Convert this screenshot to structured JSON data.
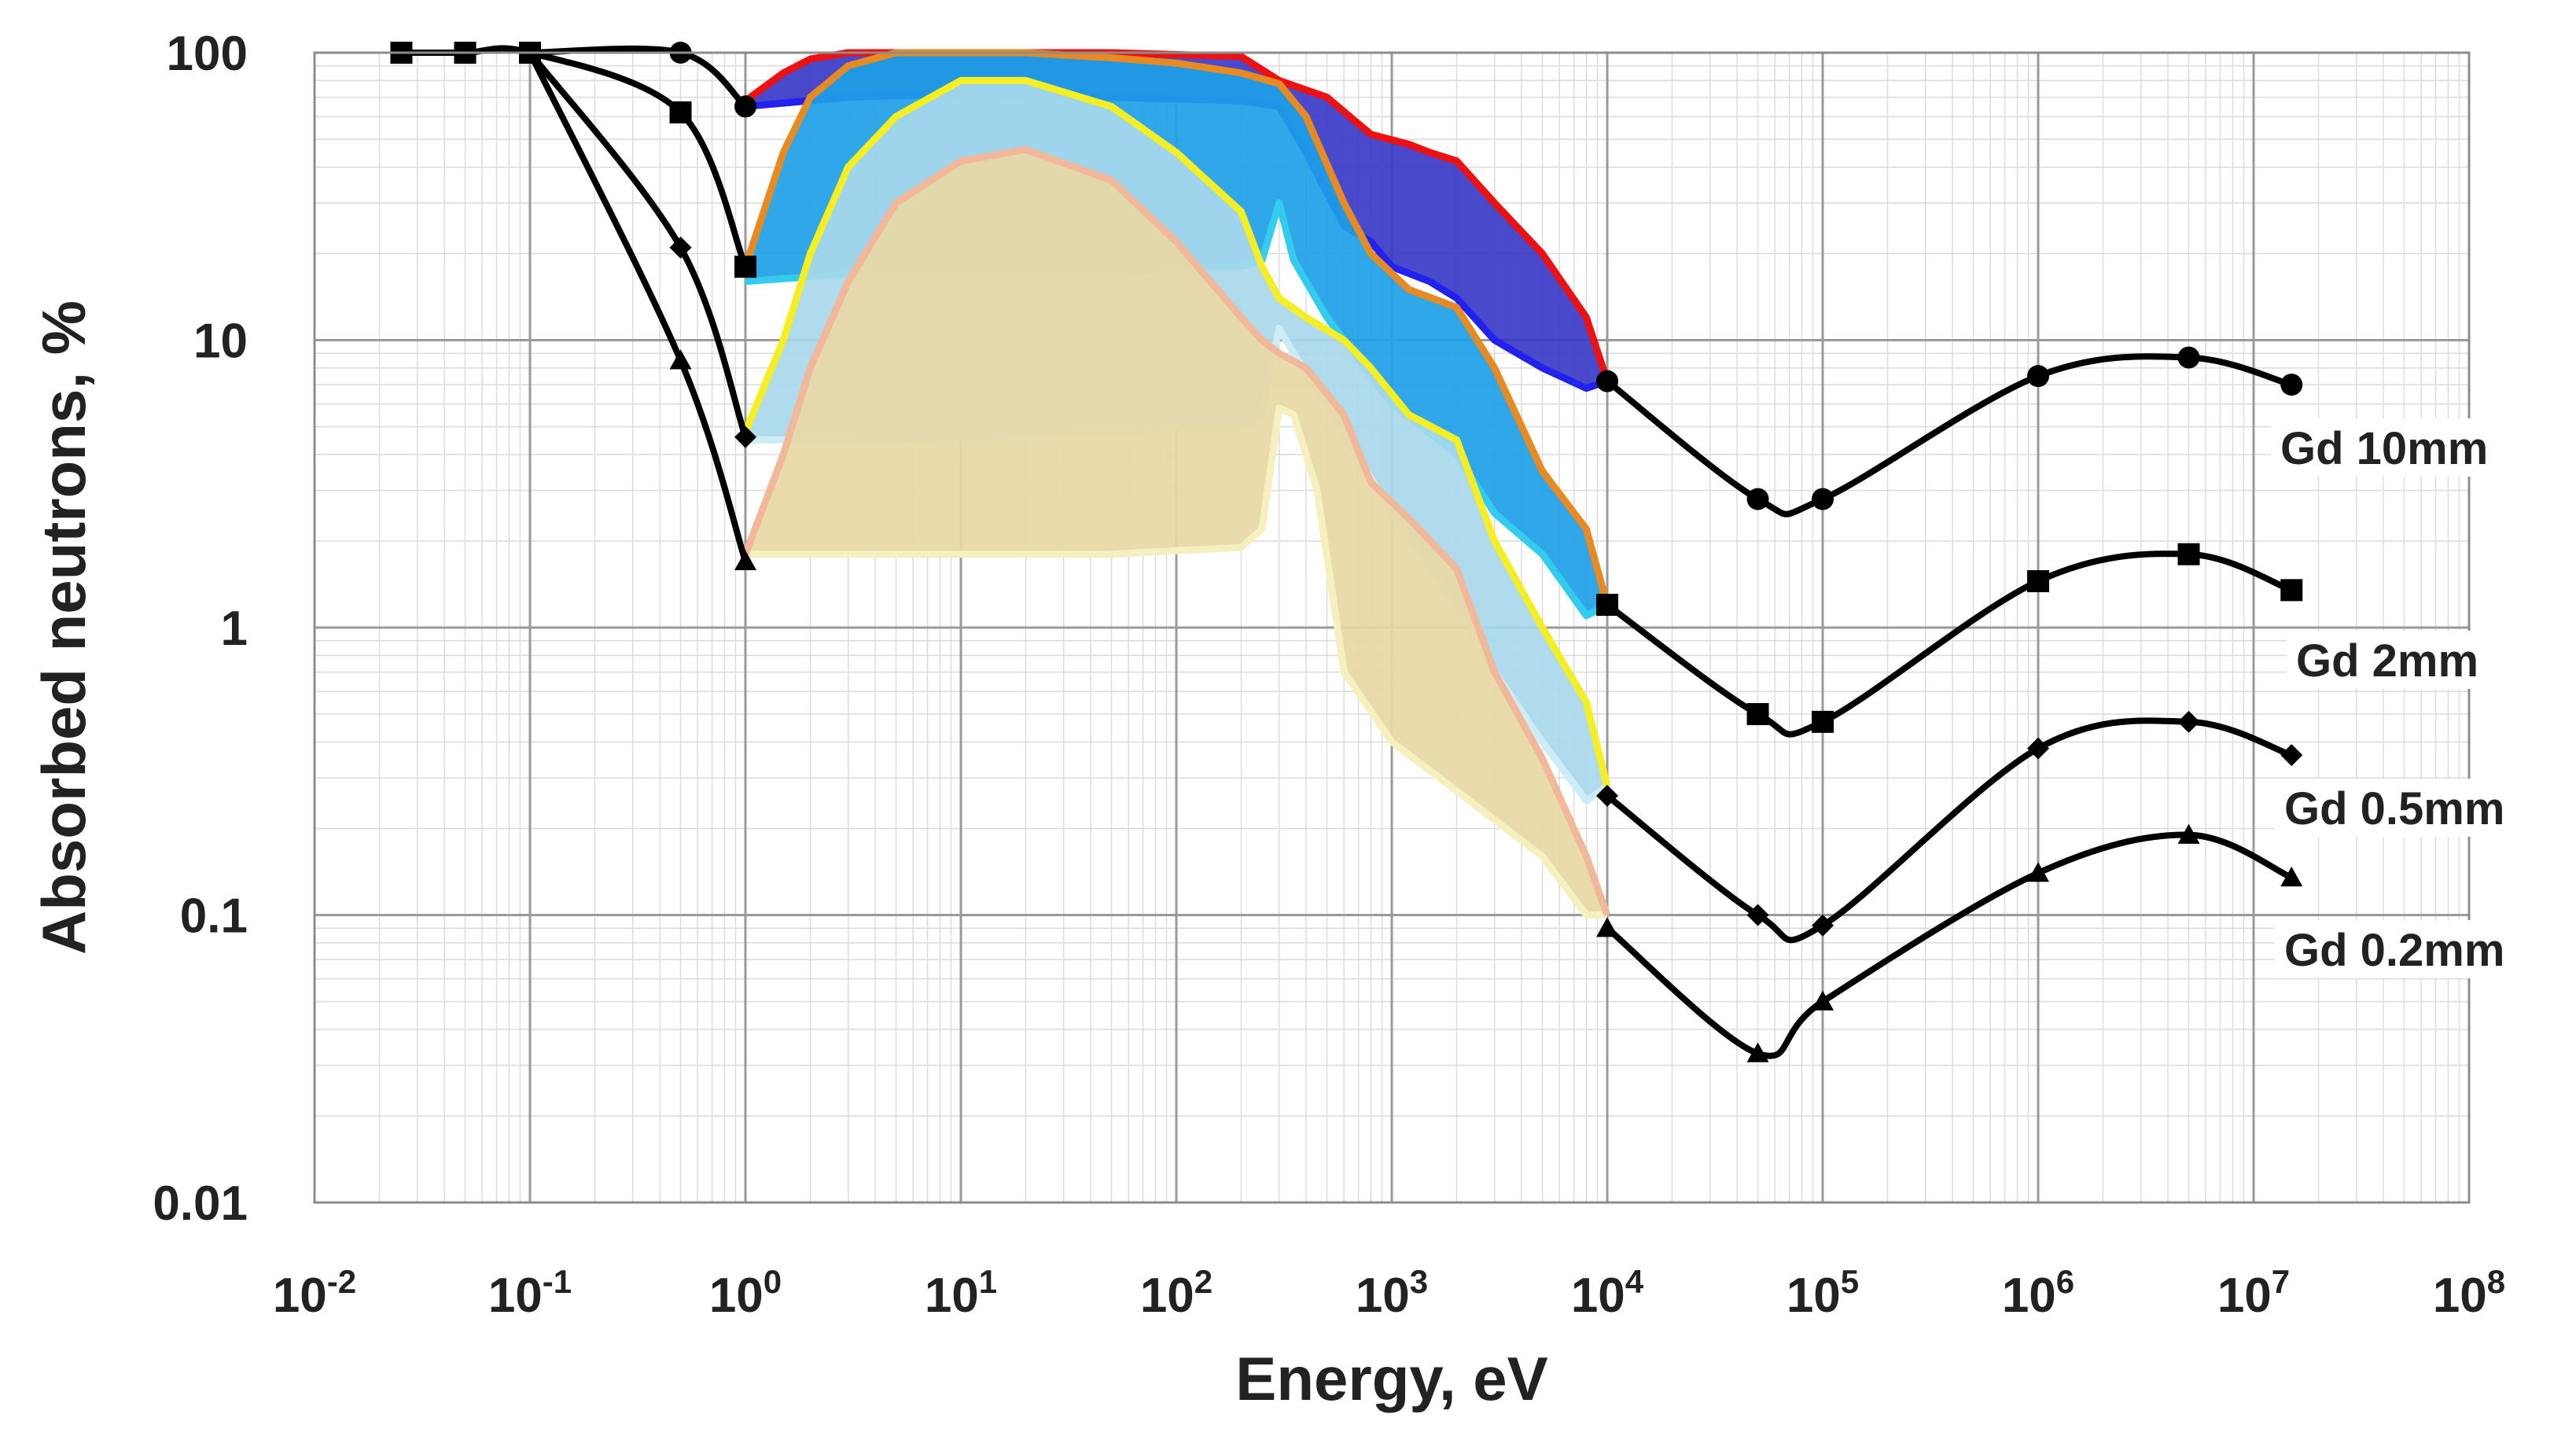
{
  "chart_data": {
    "type": "line",
    "xlabel": "Energy, eV",
    "ylabel": "Absorbed neutrons, %",
    "xscale": "log",
    "yscale": "log",
    "xlim": [
      0.01,
      100000000
    ],
    "ylim": [
      0.01,
      100
    ],
    "grid": true,
    "x_ticks": [
      {
        "base": "10",
        "exp": "-2"
      },
      {
        "base": "10",
        "exp": "-1"
      },
      {
        "base": "10",
        "exp": "0"
      },
      {
        "base": "10",
        "exp": "1"
      },
      {
        "base": "10",
        "exp": "2"
      },
      {
        "base": "10",
        "exp": "3"
      },
      {
        "base": "10",
        "exp": "4"
      },
      {
        "base": "10",
        "exp": "5"
      },
      {
        "base": "10",
        "exp": "6"
      },
      {
        "base": "10",
        "exp": "7"
      },
      {
        "base": "10",
        "exp": "8"
      }
    ],
    "y_ticks": [
      "0.01",
      "0.1",
      "1",
      "10",
      "100"
    ],
    "series": [
      {
        "name": "Gd 10mm",
        "marker": "circle",
        "line_color": "#000000",
        "x": [
          0.1,
          0.5,
          1,
          10000,
          50000,
          100000,
          1000000,
          5000000,
          15000000
        ],
        "y": [
          100,
          100,
          65,
          7.2,
          2.8,
          2.8,
          7.5,
          8.7,
          7.0
        ]
      },
      {
        "name": "Gd 2mm",
        "marker": "square",
        "line_color": "#000000",
        "x": [
          0.0253,
          0.05,
          0.1,
          0.5,
          1,
          10000,
          50000,
          100000,
          1000000,
          5000000,
          15000000
        ],
        "y": [
          100,
          100,
          100,
          62,
          18,
          1.2,
          0.5,
          0.47,
          1.45,
          1.8,
          1.35
        ]
      },
      {
        "name": "Gd 0.5mm",
        "marker": "diamond",
        "line_color": "#000000",
        "x": [
          0.1,
          0.5,
          1,
          10000,
          50000,
          100000,
          1000000,
          5000000,
          15000000
        ],
        "y": [
          100,
          21,
          4.6,
          0.26,
          0.1,
          0.092,
          0.38,
          0.47,
          0.36
        ]
      },
      {
        "name": "Gd 0.2mm",
        "marker": "triangle",
        "line_color": "#000000",
        "x": [
          0.1,
          0.5,
          1,
          10000,
          50000,
          100000,
          1000000,
          5000000,
          15000000
        ],
        "y": [
          100,
          8.5,
          1.7,
          0.09,
          0.033,
          0.05,
          0.14,
          0.19,
          0.135
        ]
      }
    ],
    "resonance_bands": [
      {
        "series": "Gd 10mm",
        "fill": "#3a3ac8",
        "upper_color": "#ee1111",
        "lower_color": "#2222ee",
        "upper": [
          [
            1,
            68
          ],
          [
            1.5,
            85
          ],
          [
            2,
            95
          ],
          [
            3,
            100
          ],
          [
            10,
            100
          ],
          [
            50,
            100
          ],
          [
            200,
            97
          ],
          [
            300,
            80
          ],
          [
            500,
            70
          ],
          [
            800,
            52
          ],
          [
            1200,
            48
          ],
          [
            1500,
            45
          ],
          [
            2000,
            42
          ],
          [
            3000,
            30
          ],
          [
            5000,
            20
          ],
          [
            8000,
            12
          ],
          [
            10000,
            7.2
          ]
        ],
        "lower": [
          [
            1,
            65
          ],
          [
            3,
            70
          ],
          [
            10,
            72
          ],
          [
            50,
            70
          ],
          [
            200,
            68
          ],
          [
            300,
            65
          ],
          [
            400,
            45
          ],
          [
            600,
            25
          ],
          [
            800,
            22
          ],
          [
            1000,
            18
          ],
          [
            1500,
            16
          ],
          [
            2000,
            14
          ],
          [
            3000,
            10
          ],
          [
            5000,
            8
          ],
          [
            8000,
            6.8
          ],
          [
            10000,
            7.2
          ]
        ]
      },
      {
        "series": "Gd 2mm",
        "fill": "#1ea0e6",
        "upper_color": "#e88a22",
        "lower_color": "#33ccee",
        "upper": [
          [
            1,
            18
          ],
          [
            1.5,
            45
          ],
          [
            2,
            70
          ],
          [
            3,
            90
          ],
          [
            5,
            100
          ],
          [
            10,
            100
          ],
          [
            20,
            100
          ],
          [
            50,
            96
          ],
          [
            100,
            92
          ],
          [
            200,
            85
          ],
          [
            300,
            78
          ],
          [
            400,
            60
          ],
          [
            600,
            30
          ],
          [
            800,
            20
          ],
          [
            1200,
            15
          ],
          [
            2000,
            13
          ],
          [
            3000,
            8
          ],
          [
            5000,
            3.5
          ],
          [
            8000,
            2.2
          ],
          [
            10000,
            1.2
          ]
        ],
        "lower": [
          [
            1,
            16
          ],
          [
            3,
            17
          ],
          [
            10,
            17
          ],
          [
            50,
            17
          ],
          [
            100,
            18
          ],
          [
            200,
            18
          ],
          [
            250,
            19
          ],
          [
            300,
            30
          ],
          [
            350,
            19
          ],
          [
            500,
            12
          ],
          [
            1000,
            6
          ],
          [
            2000,
            4
          ],
          [
            3000,
            2.5
          ],
          [
            5000,
            1.8
          ],
          [
            8000,
            1.1
          ],
          [
            10000,
            1.2
          ]
        ]
      },
      {
        "series": "Gd 0.5mm",
        "fill": "#a8d8ec",
        "upper_color": "#f4ee22",
        "lower_color": "#ccecf6",
        "upper": [
          [
            1,
            4.8
          ],
          [
            1.5,
            10
          ],
          [
            2,
            20
          ],
          [
            3,
            40
          ],
          [
            5,
            60
          ],
          [
            10,
            80
          ],
          [
            20,
            80
          ],
          [
            50,
            65
          ],
          [
            100,
            45
          ],
          [
            200,
            28
          ],
          [
            250,
            18
          ],
          [
            300,
            14
          ],
          [
            400,
            12
          ],
          [
            600,
            10
          ],
          [
            800,
            8
          ],
          [
            1200,
            5.5
          ],
          [
            2000,
            4.5
          ],
          [
            3000,
            2
          ],
          [
            5000,
            1
          ],
          [
            8000,
            0.55
          ],
          [
            10000,
            0.28
          ]
        ],
        "lower": [
          [
            1,
            4.5
          ],
          [
            3,
            4.5
          ],
          [
            10,
            4.6
          ],
          [
            50,
            4.8
          ],
          [
            100,
            5
          ],
          [
            200,
            5
          ],
          [
            250,
            5.5
          ],
          [
            300,
            11
          ],
          [
            350,
            9
          ],
          [
            500,
            6
          ],
          [
            1000,
            2.5
          ],
          [
            2000,
            1.2
          ],
          [
            3000,
            0.7
          ],
          [
            5000,
            0.4
          ],
          [
            8000,
            0.25
          ],
          [
            10000,
            0.28
          ]
        ]
      },
      {
        "series": "Gd 0.2mm",
        "fill": "#e8d8a6",
        "upper_color": "#f2b89a",
        "lower_color": "#f6f0c0",
        "upper": [
          [
            1,
            1.8
          ],
          [
            1.5,
            4
          ],
          [
            2,
            8
          ],
          [
            3,
            16
          ],
          [
            5,
            30
          ],
          [
            10,
            42
          ],
          [
            20,
            46
          ],
          [
            50,
            36
          ],
          [
            100,
            22
          ],
          [
            200,
            12
          ],
          [
            250,
            10
          ],
          [
            300,
            9
          ],
          [
            400,
            8
          ],
          [
            600,
            5.5
          ],
          [
            800,
            3.2
          ],
          [
            1200,
            2.4
          ],
          [
            2000,
            1.6
          ],
          [
            3000,
            0.7
          ],
          [
            5000,
            0.35
          ],
          [
            8000,
            0.16
          ],
          [
            10000,
            0.1
          ]
        ],
        "lower": [
          [
            1,
            1.8
          ],
          [
            3,
            1.8
          ],
          [
            10,
            1.8
          ],
          [
            50,
            1.8
          ],
          [
            100,
            1.85
          ],
          [
            200,
            1.9
          ],
          [
            250,
            2.2
          ],
          [
            300,
            5.8
          ],
          [
            350,
            5.5
          ],
          [
            450,
            3
          ],
          [
            600,
            0.7
          ],
          [
            1000,
            0.4
          ],
          [
            2000,
            0.27
          ],
          [
            5000,
            0.16
          ],
          [
            8000,
            0.1
          ],
          [
            10000,
            0.1
          ]
        ]
      }
    ]
  }
}
